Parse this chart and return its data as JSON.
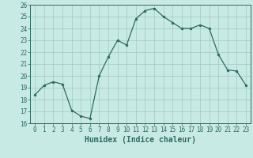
{
  "x": [
    0,
    1,
    2,
    3,
    4,
    5,
    6,
    7,
    8,
    9,
    10,
    11,
    12,
    13,
    14,
    15,
    16,
    17,
    18,
    19,
    20,
    21,
    22,
    23
  ],
  "y": [
    18.4,
    19.2,
    19.5,
    19.3,
    17.1,
    16.6,
    16.4,
    20.0,
    21.6,
    23.0,
    22.6,
    24.8,
    25.5,
    25.7,
    25.0,
    24.5,
    24.0,
    24.0,
    24.3,
    24.0,
    21.8,
    20.5,
    20.4,
    19.2
  ],
  "line_color": "#2e6b5e",
  "marker": "o",
  "markersize": 2.0,
  "linewidth": 0.9,
  "bg_color": "#c8eae4",
  "grid_color": "#a0c8c0",
  "xlabel": "Humidex (Indice chaleur)",
  "ylim": [
    16,
    26
  ],
  "xlim": [
    -0.5,
    23.5
  ],
  "yticks": [
    16,
    17,
    18,
    19,
    20,
    21,
    22,
    23,
    24,
    25,
    26
  ],
  "xticks": [
    0,
    1,
    2,
    3,
    4,
    5,
    6,
    7,
    8,
    9,
    10,
    11,
    12,
    13,
    14,
    15,
    16,
    17,
    18,
    19,
    20,
    21,
    22,
    23
  ],
  "tick_color": "#2e6b5e",
  "label_color": "#2e6b5e",
  "xlabel_fontsize": 7,
  "tick_fontsize": 5.5
}
